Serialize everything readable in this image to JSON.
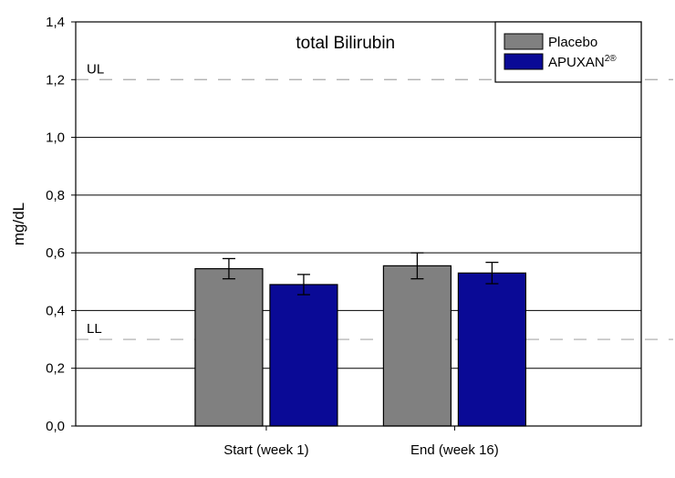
{
  "chart_data": {
    "type": "bar",
    "title": "total Bilirubin",
    "ylabel": "mg/dL",
    "xlabel": "",
    "categories": [
      "Start (week 1)",
      "End (week 16)"
    ],
    "series": [
      {
        "name": "Placebo",
        "values": [
          0.545,
          0.555
        ],
        "errors": [
          0.035,
          0.045
        ],
        "color": "#808080"
      },
      {
        "name": "APUXAN",
        "name_sup": "2®",
        "values": [
          0.49,
          0.53
        ],
        "errors": [
          0.035,
          0.037
        ],
        "color": "#0a0a96"
      }
    ],
    "ylim": [
      0,
      1.4
    ],
    "yticks": [
      0.0,
      0.2,
      0.4,
      0.6,
      0.8,
      1.0,
      1.2,
      1.4
    ],
    "ytick_labels": [
      "0,0",
      "0,2",
      "0,4",
      "0,6",
      "0,8",
      "1,0",
      "1,2",
      "1,4"
    ],
    "reference_lines": [
      {
        "label": "UL",
        "value": 1.2
      },
      {
        "label": "LL",
        "value": 0.3
      }
    ],
    "grid": true,
    "legend_position": "top-right"
  }
}
